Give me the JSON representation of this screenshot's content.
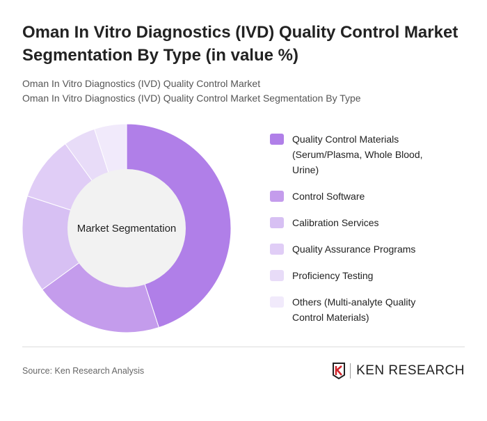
{
  "title": "Oman In Vitro Diagnostics (IVD) Quality Control Market Segmentation By Type (in value %)",
  "subtitle1": "Oman In Vitro Diagnostics (IVD) Quality Control Market",
  "subtitle2": "Oman In Vitro Diagnostics (IVD) Quality Control Market Segmentation By Type",
  "source": "Source: Ken Research Analysis",
  "logo_text": "KEN RESEARCH",
  "chart_data": {
    "type": "pie",
    "donut": true,
    "center_label": "Market Segmentation",
    "legend_position": "right",
    "categories": [
      "Quality Control Materials (Serum/Plasma, Whole Blood, Urine)",
      "Control Software",
      "Calibration Services",
      "Quality Assurance Programs",
      "Proficiency Testing",
      "Others (Multi-analyte Quality Control Materials)"
    ],
    "values": [
      45,
      20,
      15,
      10,
      5,
      5
    ],
    "colors": [
      "#b07fe8",
      "#c49cec",
      "#d7c0f3",
      "#e0cdf6",
      "#e8dcf8",
      "#f1eafb"
    ]
  }
}
